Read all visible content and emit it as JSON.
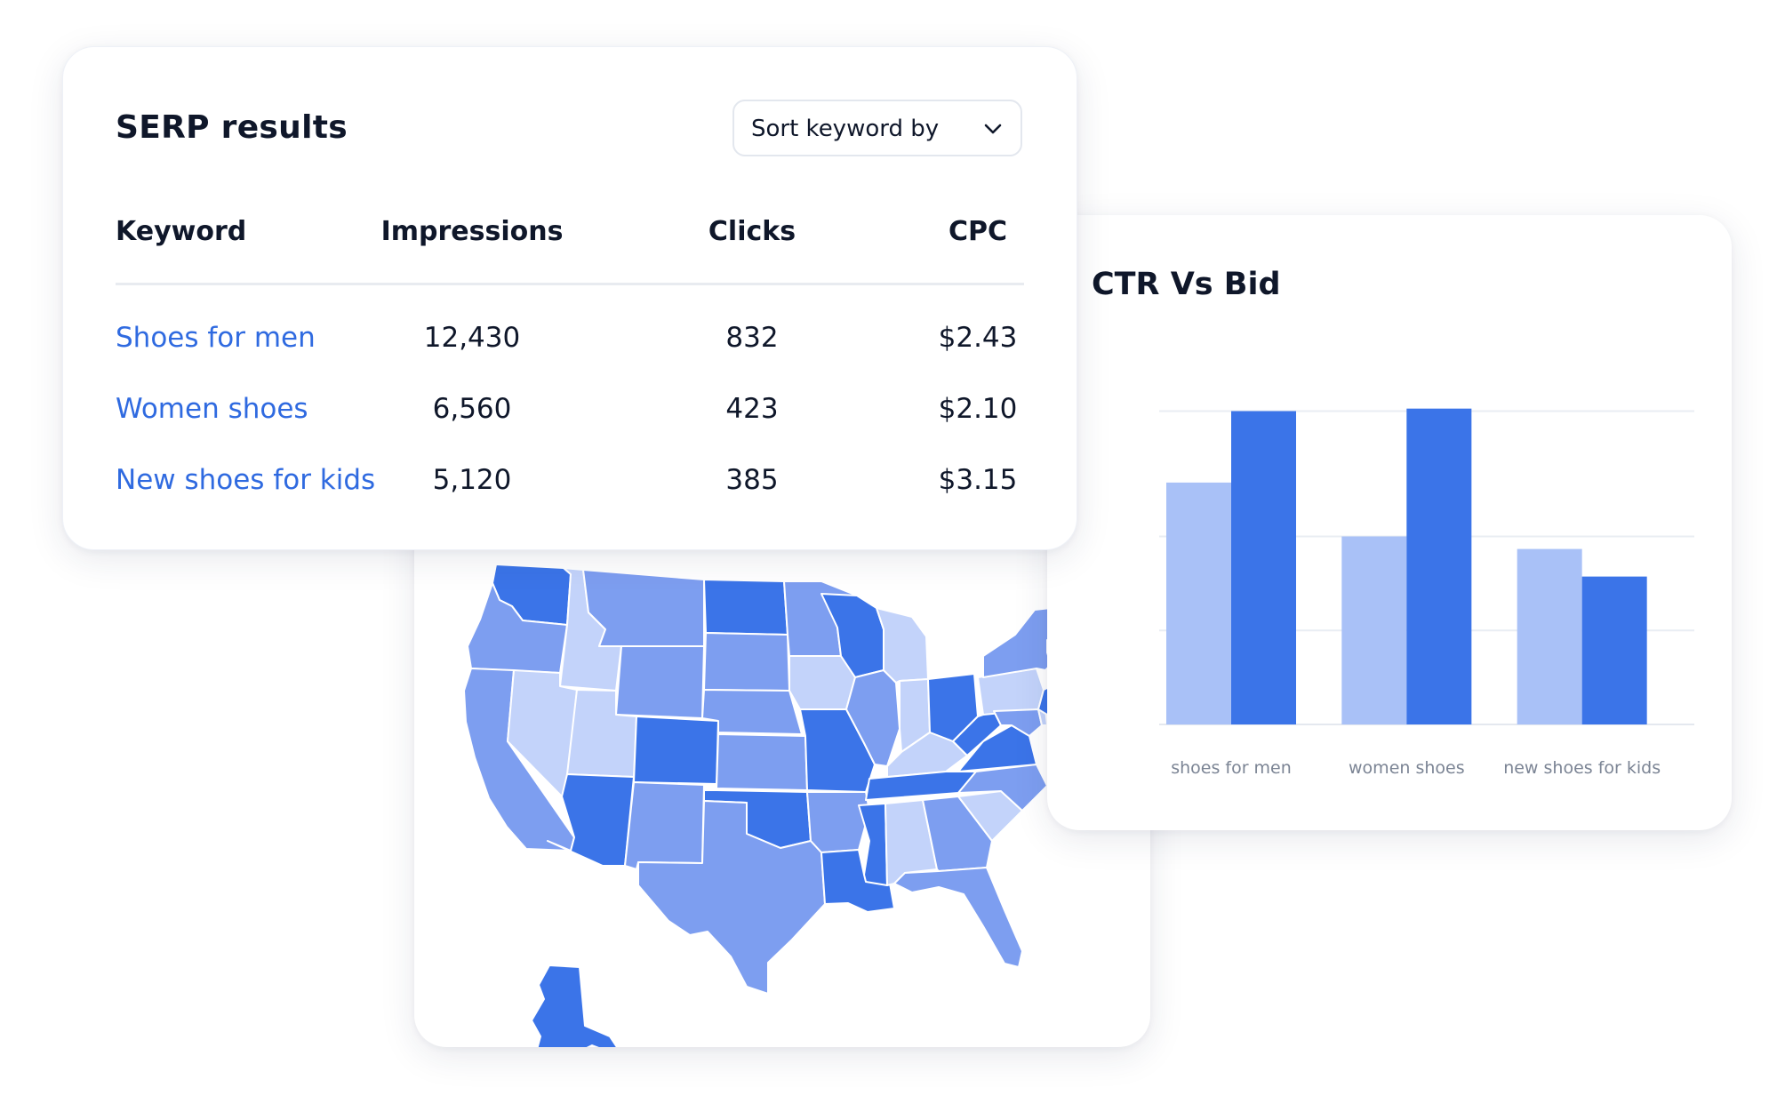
{
  "serp": {
    "title": "SERP results",
    "sort_label": "Sort keyword by",
    "columns": [
      "Keyword",
      "Impressions",
      "Clicks",
      "CPC"
    ],
    "rows": [
      {
        "keyword": "Shoes for men",
        "impressions": "12,430",
        "clicks": "832",
        "cpc": "$2.43"
      },
      {
        "keyword": "Women shoes",
        "impressions": "6,560",
        "clicks": "423",
        "cpc": "$2.10"
      },
      {
        "keyword": "New shoes for kids",
        "impressions": "5,120",
        "clicks": "385",
        "cpc": "$3.15"
      }
    ]
  },
  "ctr_chart": {
    "title": "CTR Vs Bid"
  },
  "chart_data": {
    "type": "bar",
    "title": "CTR Vs Bid",
    "categories": [
      "shoes for men",
      "women shoes",
      "new shoes for kids"
    ],
    "series": [
      {
        "color": "#a9c1f7",
        "values": [
          1.93,
          1.5,
          1.4
        ]
      },
      {
        "color": "#3b74e8",
        "values": [
          2.5,
          2.52,
          1.18
        ]
      }
    ],
    "ylim": [
      0,
      3
    ],
    "grid": true,
    "xlabel": "",
    "ylabel": ""
  },
  "map": {
    "palette": {
      "light": "#c3d3fa",
      "mid": "#7d9ef0",
      "dark": "#3b74e8"
    }
  }
}
